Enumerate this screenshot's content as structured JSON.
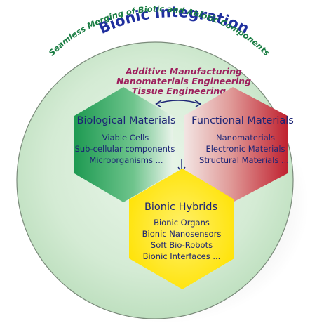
{
  "title": "Bionic Integration",
  "subtitle": "Seamless Merging of Biotic and Abiotic Components",
  "methods": [
    "Additive Manufacturing",
    "Nanomaterials Engineering",
    "Tissue Engineering"
  ],
  "biological": {
    "heading": "Biological Materials",
    "items": [
      "Viable Cells",
      "Sub-cellular components",
      "Microorganisms ..."
    ]
  },
  "functional": {
    "heading": "Functional Materials",
    "items": [
      "Nanomaterials",
      "Electronic Materials",
      "Structural Materials ..."
    ]
  },
  "hybrids": {
    "heading": "Bionic Hybrids",
    "items": [
      "Bionic Organs",
      "Bionic Nanosensors",
      "Soft Bio-Robots",
      "Bionic Interfaces ..."
    ]
  },
  "colors": {
    "circle_fill": "#d6ebd5",
    "title": "#1f2f9e",
    "subtitle": "#1a7d43",
    "methods": "#9e1f5d",
    "bio_hex": "#2aa05a",
    "func_hex": "#c42a36",
    "hybrid_hex": "#ffe500",
    "text_navy": "#1c2475"
  }
}
